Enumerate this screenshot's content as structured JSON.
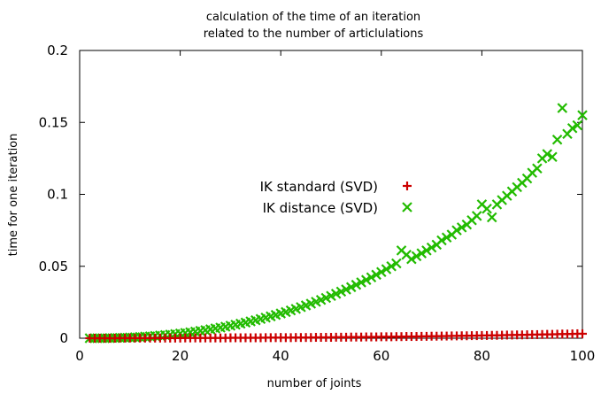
{
  "chart_data": {
    "type": "scatter",
    "title": [
      "calculation of the time of an iteration",
      "related to the number of articlulations"
    ],
    "xlabel": "number of joints",
    "ylabel": "time for one iteration",
    "xlim": [
      0,
      100
    ],
    "ylim": [
      0,
      0.2
    ],
    "xticks": [
      "0",
      "20",
      "40",
      "60",
      "80",
      "100"
    ],
    "yticks": [
      "0",
      "0.05",
      "0.1",
      "0.15",
      "0.2"
    ],
    "grid": false,
    "legend_position": "center",
    "series": [
      {
        "name": "IK standard (SVD)",
        "marker": "plus",
        "color": "#cc0000",
        "x": [
          2,
          3,
          4,
          5,
          6,
          7,
          8,
          9,
          10,
          11,
          12,
          13,
          14,
          15,
          16,
          17,
          18,
          19,
          20,
          21,
          22,
          23,
          24,
          25,
          26,
          27,
          28,
          29,
          30,
          31,
          32,
          33,
          34,
          35,
          36,
          37,
          38,
          39,
          40,
          41,
          42,
          43,
          44,
          45,
          46,
          47,
          48,
          49,
          50,
          51,
          52,
          53,
          54,
          55,
          56,
          57,
          58,
          59,
          60,
          61,
          62,
          63,
          64,
          65,
          66,
          67,
          68,
          69,
          70,
          71,
          72,
          73,
          74,
          75,
          76,
          77,
          78,
          79,
          80,
          81,
          82,
          83,
          84,
          85,
          86,
          87,
          88,
          89,
          90,
          91,
          92,
          93,
          94,
          95,
          96,
          97,
          98,
          99,
          100
        ],
        "y": [
          0.0,
          0.0,
          0.0,
          0.0,
          0.0,
          0.0,
          0.0001,
          0.0001,
          0.0001,
          0.0001,
          0.0001,
          0.0001,
          0.0001,
          0.0001,
          0.0001,
          0.0001,
          0.0001,
          0.0001,
          0.0001,
          0.0002,
          0.0002,
          0.0002,
          0.0002,
          0.0002,
          0.0002,
          0.0002,
          0.0002,
          0.0002,
          0.0003,
          0.0003,
          0.0003,
          0.0003,
          0.0003,
          0.0003,
          0.0003,
          0.0004,
          0.0004,
          0.0004,
          0.0004,
          0.0004,
          0.0004,
          0.0005,
          0.0005,
          0.0005,
          0.0005,
          0.0006,
          0.0006,
          0.0006,
          0.0006,
          0.0007,
          0.0007,
          0.0007,
          0.0008,
          0.0008,
          0.0008,
          0.0009,
          0.0009,
          0.0009,
          0.001,
          0.001,
          0.001,
          0.0011,
          0.0011,
          0.0012,
          0.0012,
          0.0012,
          0.0013,
          0.0013,
          0.0014,
          0.0014,
          0.0015,
          0.0015,
          0.0016,
          0.0016,
          0.0017,
          0.0017,
          0.0018,
          0.0018,
          0.0019,
          0.0019,
          0.002,
          0.002,
          0.0021,
          0.0022,
          0.0022,
          0.0023,
          0.0023,
          0.0024,
          0.0025,
          0.0025,
          0.0026,
          0.0027,
          0.0027,
          0.0028,
          0.0029,
          0.0029,
          0.003,
          0.0031,
          0.0031
        ]
      },
      {
        "name": "IK distance (SVD)",
        "marker": "x",
        "color": "#22bb00",
        "x": [
          2,
          3,
          4,
          5,
          6,
          7,
          8,
          9,
          10,
          11,
          12,
          13,
          14,
          15,
          16,
          17,
          18,
          19,
          20,
          21,
          22,
          23,
          24,
          25,
          26,
          27,
          28,
          29,
          30,
          31,
          32,
          33,
          34,
          35,
          36,
          37,
          38,
          39,
          40,
          41,
          42,
          43,
          44,
          45,
          46,
          47,
          48,
          49,
          50,
          51,
          52,
          53,
          54,
          55,
          56,
          57,
          58,
          59,
          60,
          61,
          62,
          63,
          64,
          65,
          66,
          67,
          68,
          69,
          70,
          71,
          72,
          73,
          74,
          75,
          76,
          77,
          78,
          79,
          80,
          81,
          82,
          83,
          84,
          85,
          86,
          87,
          88,
          89,
          90,
          91,
          92,
          93,
          94,
          95,
          96,
          97,
          98,
          99,
          100
        ],
        "y": [
          0.0,
          0.0,
          0.0,
          0.0,
          0.0001,
          0.0002,
          0.0003,
          0.0004,
          0.0005,
          0.0007,
          0.0009,
          0.0011,
          0.0013,
          0.0016,
          0.0019,
          0.0022,
          0.0025,
          0.0029,
          0.0033,
          0.0037,
          0.0041,
          0.0046,
          0.0051,
          0.0056,
          0.0062,
          0.0068,
          0.0074,
          0.008,
          0.0087,
          0.0094,
          0.0101,
          0.0109,
          0.0117,
          0.0125,
          0.0134,
          0.0143,
          0.0152,
          0.0162,
          0.0172,
          0.0182,
          0.0193,
          0.0204,
          0.0216,
          0.0228,
          0.024,
          0.0253,
          0.0266,
          0.028,
          0.0294,
          0.0309,
          0.0324,
          0.0339,
          0.0355,
          0.0371,
          0.0388,
          0.0405,
          0.0423,
          0.0441,
          0.046,
          0.048,
          0.05,
          0.052,
          0.061,
          0.058,
          0.055,
          0.057,
          0.059,
          0.061,
          0.063,
          0.065,
          0.068,
          0.07,
          0.072,
          0.075,
          0.077,
          0.079,
          0.082,
          0.085,
          0.093,
          0.09,
          0.084,
          0.093,
          0.096,
          0.099,
          0.102,
          0.105,
          0.108,
          0.111,
          0.115,
          0.118,
          0.125,
          0.128,
          0.126,
          0.138,
          0.16,
          0.142,
          0.146,
          0.148,
          0.155
        ]
      }
    ]
  }
}
